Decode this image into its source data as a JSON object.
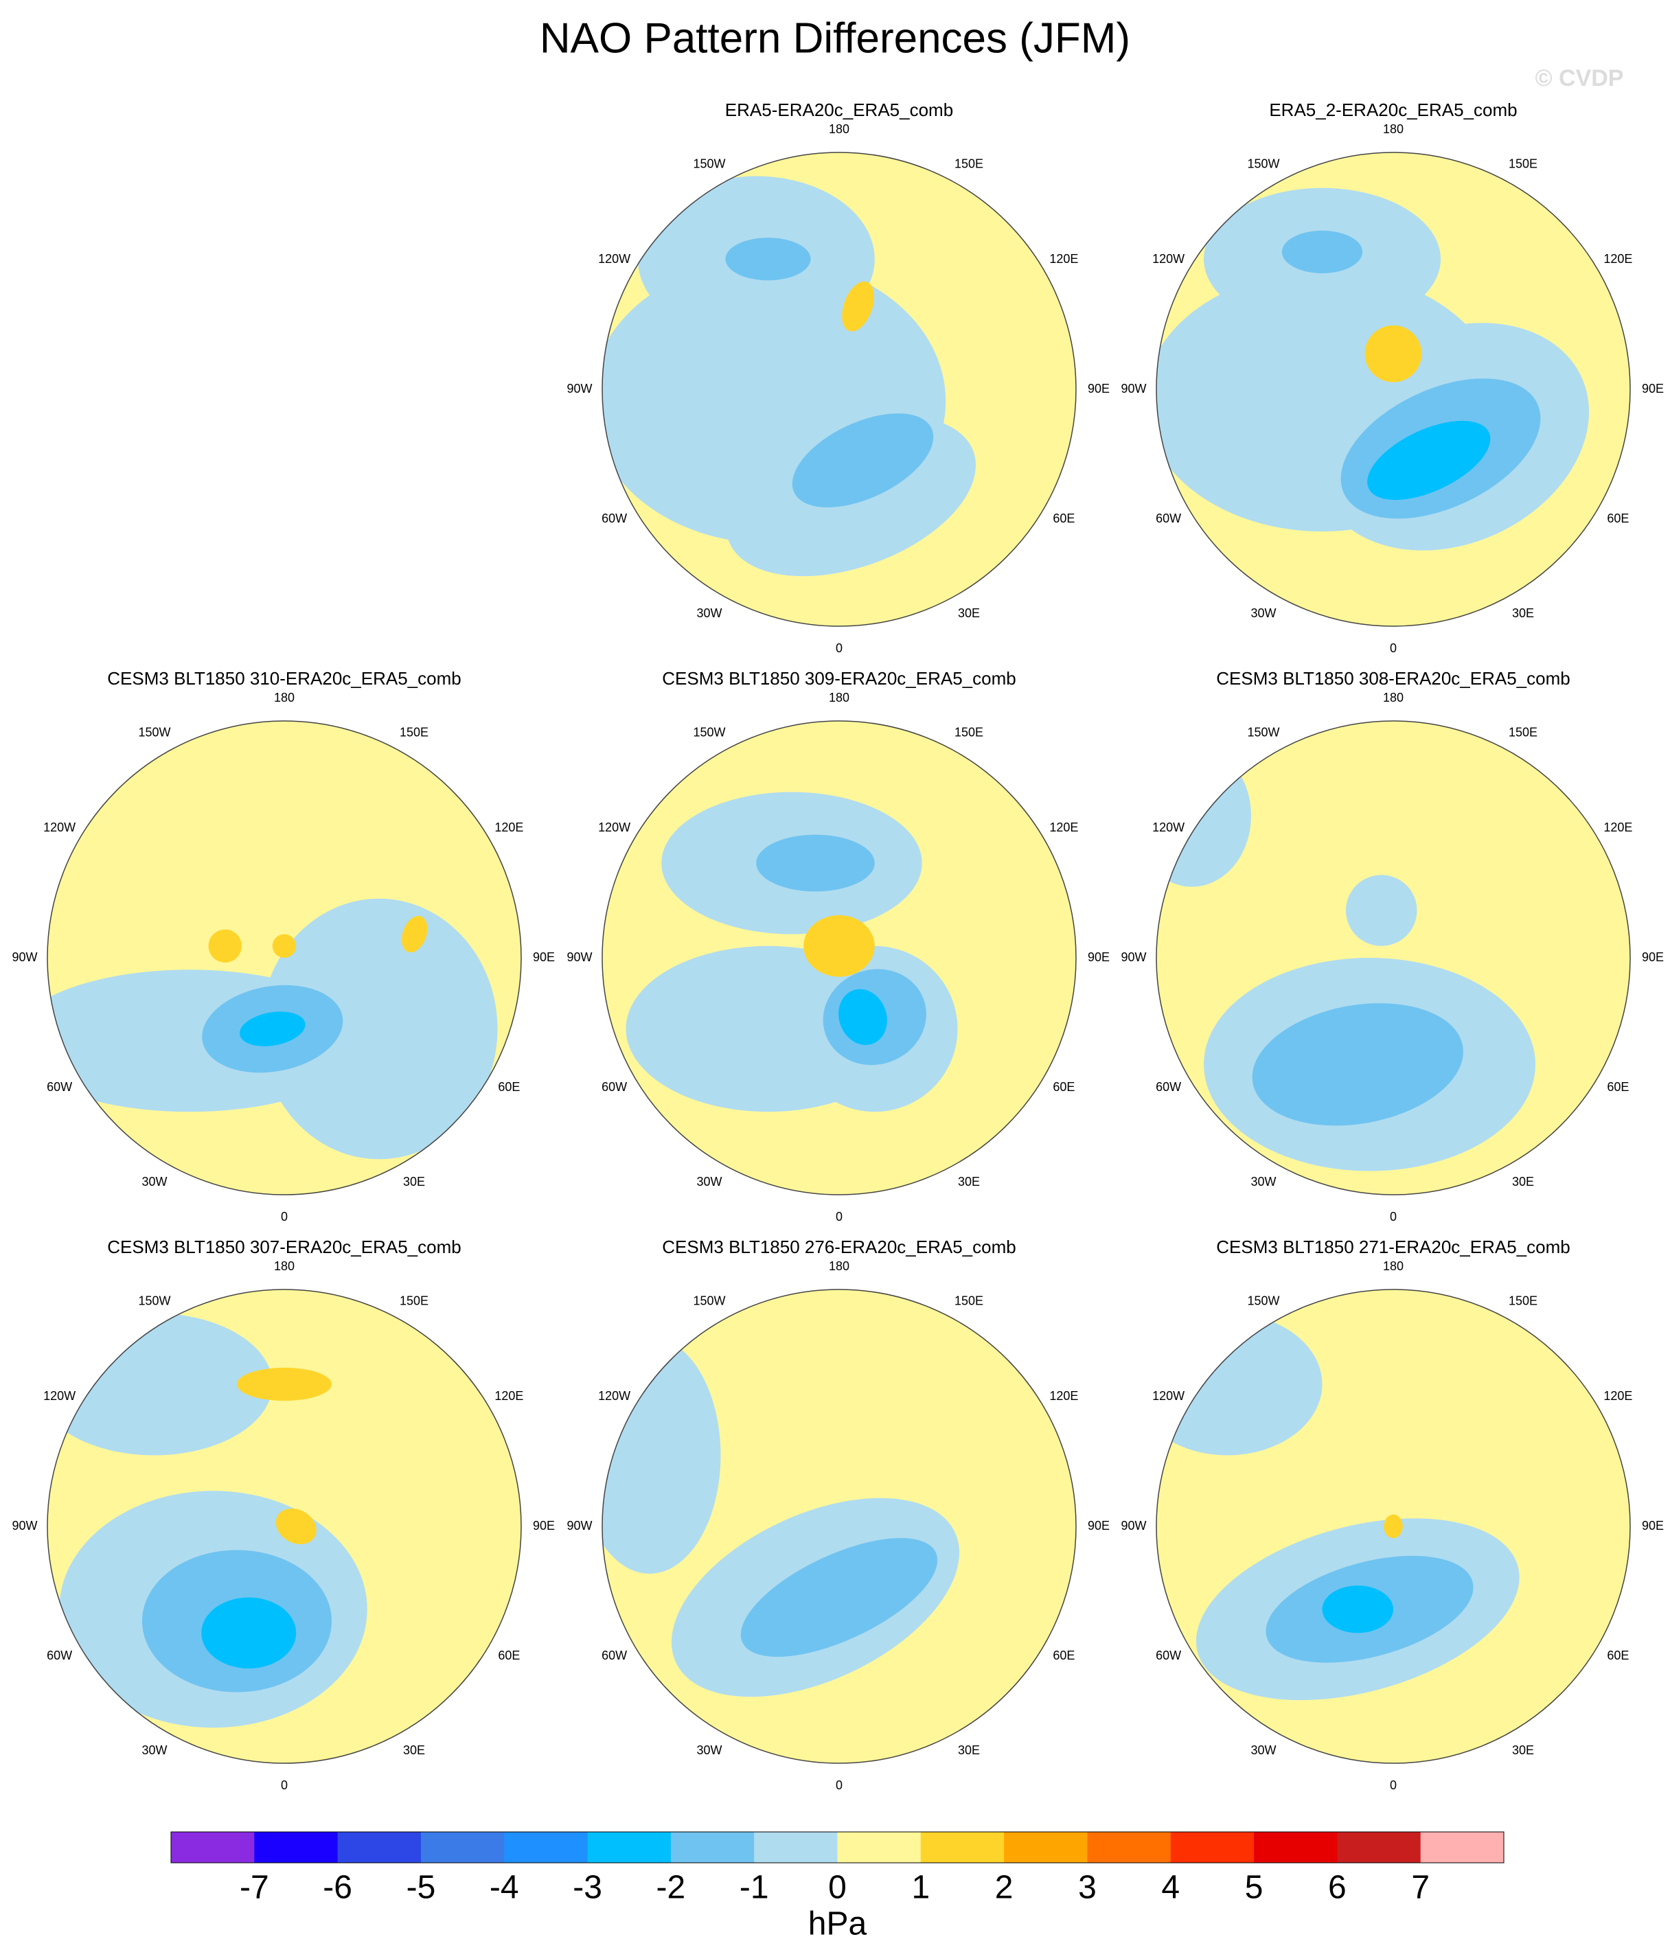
{
  "header": {
    "title": "NAO Pattern Differences (JFM)",
    "watermark": "© CVDP"
  },
  "lon_labels": [
    180,
    {
      "value": -150,
      "label": "150W"
    },
    {
      "value": 150,
      "label": "150E"
    },
    {
      "value": -120,
      "label": "120W"
    },
    {
      "value": 120,
      "label": "120E"
    },
    {
      "value": -90,
      "label": "90W"
    },
    {
      "value": 90,
      "label": "90E"
    },
    {
      "value": -60,
      "label": "60W"
    },
    {
      "value": 60,
      "label": "60E"
    },
    {
      "value": -30,
      "label": "30W"
    },
    {
      "value": 30,
      "label": "30E"
    },
    0
  ],
  "panels": [
    {
      "title": "ERA5-ERA20c_ERA5_comb"
    },
    {
      "title": "ERA5_2-ERA20c_ERA5_comb"
    },
    {
      "title": "CESM3 BLT1850 310-ERA20c_ERA5_comb"
    },
    {
      "title": "CESM3 BLT1850 309-ERA20c_ERA5_comb"
    },
    {
      "title": "CESM3 BLT1850 308-ERA20c_ERA5_comb"
    },
    {
      "title": "CESM3 BLT1850 307-ERA20c_ERA5_comb"
    },
    {
      "title": "CESM3 BLT1850 276-ERA20c_ERA5_comb"
    },
    {
      "title": "CESM3 BLT1850 271-ERA20c_ERA5_comb"
    }
  ],
  "colorbar": {
    "colors": [
      "#8a2be2",
      "#1a00ff",
      "#2c47e6",
      "#3a7be8",
      "#1e90ff",
      "#00bfff",
      "#6fc3f0",
      "#b0dcf0",
      "#fff79a",
      "#ffd42a",
      "#ffa500",
      "#ff7000",
      "#ff3000",
      "#e60000",
      "#c81e1e",
      "#ffb0b0"
    ],
    "ticks": [
      -7,
      -6,
      -5,
      -4,
      -3,
      -2,
      -1,
      0,
      1,
      2,
      3,
      4,
      5,
      6,
      7
    ],
    "unit": "hPa"
  }
}
